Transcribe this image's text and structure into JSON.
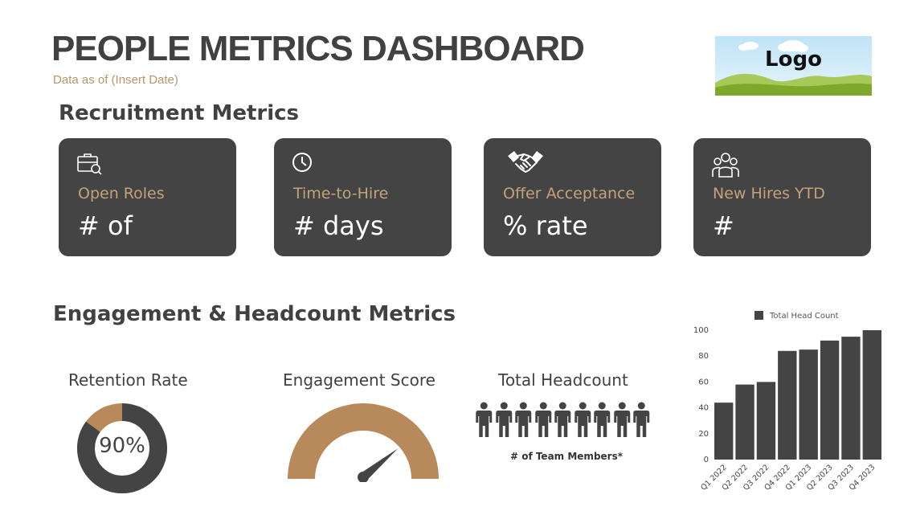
{
  "header": {
    "title": "PEOPLE METRICS DASHBOARD",
    "subtitle": "Data as of (Insert Date)",
    "logo_text": "Logo"
  },
  "recruitment": {
    "section_title": "Recruitment Metrics",
    "cards": [
      {
        "icon": "briefcase-search-icon",
        "label": "Open Roles",
        "value": "# of"
      },
      {
        "icon": "clock-icon",
        "label": "Time-to-Hire",
        "value": "# days"
      },
      {
        "icon": "handshake-icon",
        "label": "Offer Acceptance",
        "value": "% rate"
      },
      {
        "icon": "group-icon",
        "label": "New Hires YTD",
        "value": "#"
      }
    ]
  },
  "engagement": {
    "section_title": "Engagement & Headcount Metrics",
    "retention": {
      "label": "Retention Rate",
      "value_text": "90%",
      "value": 90
    },
    "engagement_score": {
      "label": "Engagement Score",
      "needle_level": 0.78
    },
    "headcount": {
      "label": "Total Headcount",
      "note": "# of Team Members*",
      "icon": "person-icon",
      "icon_count": 9
    }
  },
  "colors": {
    "dark": "#444444",
    "accent": "#b8956b",
    "card_label": "#c4a27a",
    "white": "#ffffff"
  },
  "chart_data": {
    "type": "bar",
    "categories": [
      "Q1 2022",
      "Q2 2022",
      "Q3 2022",
      "Q4 2022",
      "Q1 2023",
      "Q2 2023",
      "Q3 2023",
      "Q4 2023"
    ],
    "series": [
      {
        "name": "Total Head Count",
        "values": [
          44,
          58,
          60,
          84,
          85,
          92,
          95,
          100
        ]
      }
    ],
    "ylim": [
      0,
      100
    ],
    "yticks": [
      0,
      20,
      40,
      60,
      80,
      100
    ],
    "legend": "top",
    "grid": false,
    "color": "#444444"
  }
}
